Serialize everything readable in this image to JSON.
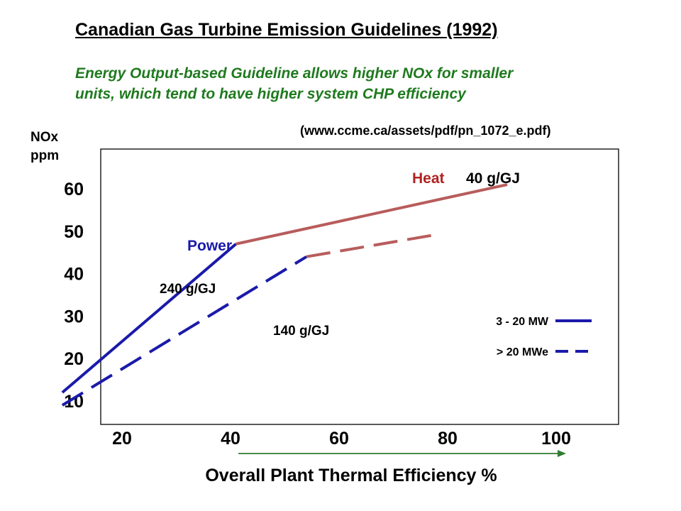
{
  "title": "Canadian Gas Turbine Emission Guidelines (1992)",
  "subtitle_line1": "Energy Output-based Guideline allows higher NOx for smaller",
  "subtitle_line2": "units, which tend to have higher system CHP efficiency",
  "source": "(www.ccme.ca/assets/pdf/pn_1072_e.pdf)",
  "colors": {
    "title": "#000000",
    "subtitle": "#1f7a1f",
    "power": "#1a1aaa",
    "heat": "#b85c5c",
    "heat_label": "#b22222",
    "arrow": "#2e7d32"
  },
  "chart_data": {
    "type": "line",
    "title": "",
    "xlabel": "Overall Plant Thermal Efficiency  %",
    "ylabel_line1": "NOx",
    "ylabel_line2": "ppm",
    "xlim": [
      0,
      100
    ],
    "ylim": [
      0,
      68
    ],
    "x_ticks": [
      20,
      40,
      60,
      80,
      100
    ],
    "y_ticks": [
      10,
      20,
      30,
      40,
      50,
      60
    ],
    "grid": false,
    "legend": "lower-right",
    "series": [
      {
        "name": "3 - 20 MW",
        "segment": "power",
        "style": "solid",
        "x": [
          9,
          41
        ],
        "y": [
          12,
          47
        ]
      },
      {
        "name": "3 - 20 MW",
        "segment": "heat",
        "style": "solid",
        "x": [
          41,
          91
        ],
        "y": [
          47,
          61
        ]
      },
      {
        "name": "> 20 MWe",
        "segment": "power",
        "style": "dashed",
        "x": [
          9,
          54
        ],
        "y": [
          9,
          44
        ]
      },
      {
        "name": "> 20 MWe",
        "segment": "heat",
        "style": "dashed",
        "x": [
          54,
          77
        ],
        "y": [
          44,
          49
        ]
      }
    ],
    "legend_entries": [
      {
        "label": "3 - 20 MW",
        "style": "solid"
      },
      {
        "label": "> 20 MWe",
        "style": "dashed"
      }
    ],
    "annotations": {
      "power": "Power",
      "heat": "Heat",
      "heat_value": "40 g/GJ",
      "power_solid_value": "240 g/GJ",
      "power_dashed_value": "140 g/GJ"
    }
  }
}
